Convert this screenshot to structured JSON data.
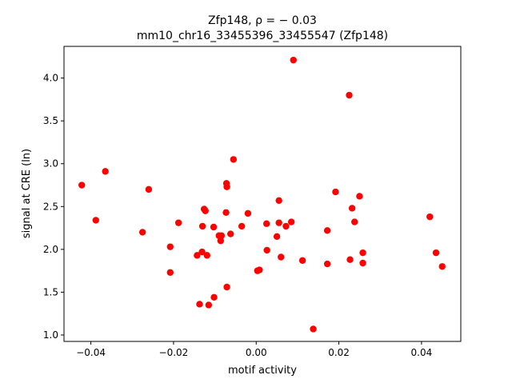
{
  "chart_data": {
    "type": "scatter",
    "title_line1": "Zfp148, ρ = − 0.03",
    "title_line2": "mm10_chr16_33455396_33455547 (Zfp148)",
    "xlabel": "motif activity",
    "ylabel": "signal at CRE (ln)",
    "xlim": [
      -0.0465,
      0.0495
    ],
    "ylim": [
      0.925,
      4.37
    ],
    "xticks": [
      -0.04,
      -0.02,
      0.0,
      0.02,
      0.04
    ],
    "xtick_labels": [
      "−0.04",
      "−0.02",
      "0.00",
      "0.02",
      "0.04"
    ],
    "yticks": [
      1.0,
      1.5,
      2.0,
      2.5,
      3.0,
      3.5,
      4.0
    ],
    "ytick_labels": [
      "1.0",
      "1.5",
      "2.0",
      "2.5",
      "3.0",
      "3.5",
      "4.0"
    ],
    "grid": false,
    "marker_color": "#ff0000",
    "points": [
      {
        "x": -0.0422,
        "y": 2.75
      },
      {
        "x": -0.0388,
        "y": 2.34
      },
      {
        "x": -0.0365,
        "y": 2.91
      },
      {
        "x": -0.0275,
        "y": 2.2
      },
      {
        "x": -0.026,
        "y": 2.7
      },
      {
        "x": -0.0208,
        "y": 2.03
      },
      {
        "x": -0.0208,
        "y": 1.73
      },
      {
        "x": -0.0188,
        "y": 2.31
      },
      {
        "x": -0.0143,
        "y": 1.93
      },
      {
        "x": -0.0137,
        "y": 1.36
      },
      {
        "x": -0.0131,
        "y": 1.97
      },
      {
        "x": -0.013,
        "y": 2.27
      },
      {
        "x": -0.0126,
        "y": 2.47
      },
      {
        "x": -0.0123,
        "y": 2.45
      },
      {
        "x": -0.0119,
        "y": 1.93
      },
      {
        "x": -0.0115,
        "y": 1.35
      },
      {
        "x": -0.0103,
        "y": 2.26
      },
      {
        "x": -0.0102,
        "y": 1.44
      },
      {
        "x": -0.009,
        "y": 2.16
      },
      {
        "x": -0.0086,
        "y": 2.1
      },
      {
        "x": -0.0084,
        "y": 2.16
      },
      {
        "x": -0.0073,
        "y": 2.43
      },
      {
        "x": -0.0072,
        "y": 2.77
      },
      {
        "x": -0.0071,
        "y": 2.73
      },
      {
        "x": -0.0071,
        "y": 1.56
      },
      {
        "x": -0.0062,
        "y": 2.18
      },
      {
        "x": -0.0055,
        "y": 3.05
      },
      {
        "x": -0.0035,
        "y": 2.27
      },
      {
        "x": -0.002,
        "y": 2.42
      },
      {
        "x": 0.0003,
        "y": 1.75
      },
      {
        "x": 0.0008,
        "y": 1.76
      },
      {
        "x": 0.0025,
        "y": 2.3
      },
      {
        "x": 0.0026,
        "y": 1.99
      },
      {
        "x": 0.005,
        "y": 2.15
      },
      {
        "x": 0.0055,
        "y": 2.31
      },
      {
        "x": 0.0055,
        "y": 2.57
      },
      {
        "x": 0.006,
        "y": 1.91
      },
      {
        "x": 0.0072,
        "y": 2.27
      },
      {
        "x": 0.0085,
        "y": 2.32
      },
      {
        "x": 0.009,
        "y": 4.21
      },
      {
        "x": 0.0112,
        "y": 1.87
      },
      {
        "x": 0.0138,
        "y": 1.07
      },
      {
        "x": 0.0172,
        "y": 2.22
      },
      {
        "x": 0.0172,
        "y": 1.83
      },
      {
        "x": 0.0192,
        "y": 2.67
      },
      {
        "x": 0.0225,
        "y": 3.8
      },
      {
        "x": 0.0227,
        "y": 1.88
      },
      {
        "x": 0.0232,
        "y": 2.48
      },
      {
        "x": 0.0238,
        "y": 2.32
      },
      {
        "x": 0.025,
        "y": 2.62
      },
      {
        "x": 0.0258,
        "y": 1.84
      },
      {
        "x": 0.0258,
        "y": 1.96
      },
      {
        "x": 0.042,
        "y": 2.38
      },
      {
        "x": 0.0435,
        "y": 1.96
      },
      {
        "x": 0.045,
        "y": 1.8
      }
    ]
  }
}
